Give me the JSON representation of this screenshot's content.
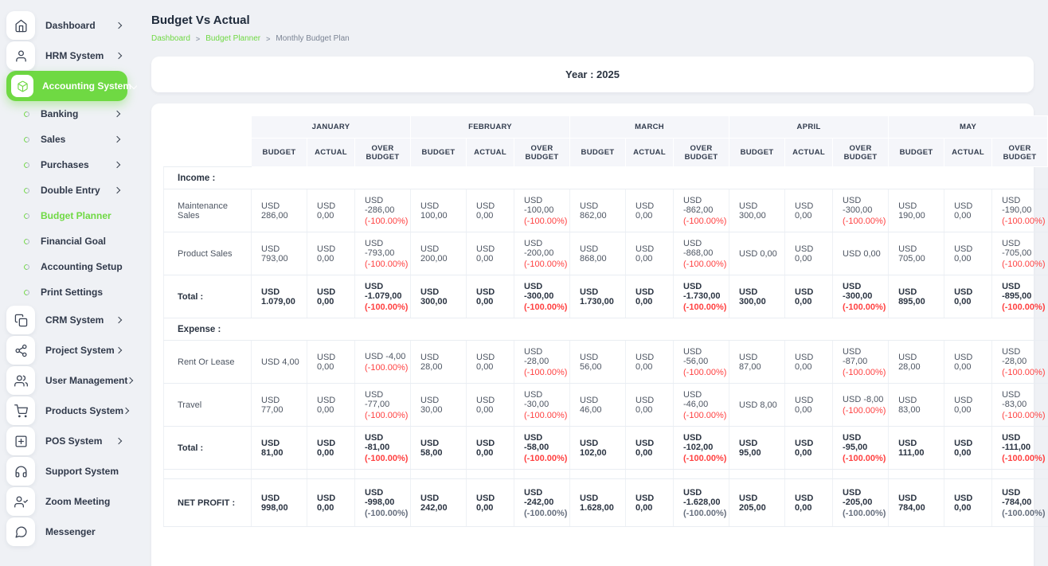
{
  "accent": {
    "green": "#6fd943",
    "red": "#ff4141",
    "dark": "#2b3442"
  },
  "sidebar": {
    "items": [
      {
        "label": "Dashboard",
        "icon": "home-icon",
        "type": "main",
        "chevron": "right"
      },
      {
        "label": "HRM System",
        "icon": "user-icon",
        "type": "main",
        "chevron": "right"
      },
      {
        "label": "Accounting System",
        "icon": "package-icon",
        "type": "main",
        "chevron": "down",
        "active": true
      },
      {
        "label": "Banking",
        "icon": "bullet-icon",
        "type": "sub",
        "chevron": "right"
      },
      {
        "label": "Sales",
        "icon": "bullet-icon",
        "type": "sub",
        "chevron": "right"
      },
      {
        "label": "Purchases",
        "icon": "bullet-icon",
        "type": "sub",
        "chevron": "right"
      },
      {
        "label": "Double Entry",
        "icon": "bullet-icon",
        "type": "sub",
        "chevron": "right"
      },
      {
        "label": "Budget Planner",
        "icon": "bullet-icon",
        "type": "sub",
        "chevron": null,
        "active": true
      },
      {
        "label": "Financial Goal",
        "icon": "bullet-icon",
        "type": "sub",
        "chevron": null
      },
      {
        "label": "Accounting Setup",
        "icon": "bullet-icon",
        "type": "sub",
        "chevron": null
      },
      {
        "label": "Print Settings",
        "icon": "bullet-icon",
        "type": "sub",
        "chevron": null
      },
      {
        "label": "CRM System",
        "icon": "copy-icon",
        "type": "main",
        "chevron": "right"
      },
      {
        "label": "Project System",
        "icon": "share-icon",
        "type": "main",
        "chevron": "right"
      },
      {
        "label": "User Management",
        "icon": "users-icon",
        "type": "main",
        "chevron": "right"
      },
      {
        "label": "Products System",
        "icon": "cart-icon",
        "type": "main",
        "chevron": "right"
      },
      {
        "label": "POS System",
        "icon": "plus-square-icon",
        "type": "main",
        "chevron": "right"
      },
      {
        "label": "Support System",
        "icon": "headphones-icon",
        "type": "main",
        "chevron": null
      },
      {
        "label": "Zoom Meeting",
        "icon": "user-check-icon",
        "type": "main",
        "chevron": null
      },
      {
        "label": "Messenger",
        "icon": "message-icon",
        "type": "main",
        "chevron": null
      }
    ]
  },
  "header": {
    "title": "Budget Vs Actual",
    "breadcrumb": [
      {
        "label": "Dashboard",
        "link": true
      },
      {
        "label": "Budget Planner",
        "link": true
      },
      {
        "label": "Monthly Budget Plan",
        "link": false
      }
    ]
  },
  "filter": {
    "year_label": "Year : 2025"
  },
  "table": {
    "months": [
      "JANUARY",
      "FEBRUARY",
      "MARCH",
      "APRIL",
      "MAY"
    ],
    "sub_headers": [
      "BUDGET",
      "ACTUAL",
      "OVER BUDGET"
    ],
    "sections": [
      {
        "heading": "Income :",
        "rows": [
          {
            "label": "Maintenance Sales",
            "bold": false,
            "pct_muted": false,
            "months": [
              {
                "budget": "USD 286,00",
                "actual": "USD 0,00",
                "over": "USD -286,00",
                "pct": "(-100.00%)"
              },
              {
                "budget": "USD 100,00",
                "actual": "USD 0,00",
                "over": "USD -100,00",
                "pct": "(-100.00%)"
              },
              {
                "budget": "USD 862,00",
                "actual": "USD 0,00",
                "over": "USD -862,00",
                "pct": "(-100.00%)"
              },
              {
                "budget": "USD 300,00",
                "actual": "USD 0,00",
                "over": "USD -300,00",
                "pct": "(-100.00%)"
              },
              {
                "budget": "USD 190,00",
                "actual": "USD 0,00",
                "over": "USD -190,00",
                "pct": "(-100.00%)"
              }
            ]
          },
          {
            "label": "Product Sales",
            "bold": false,
            "pct_muted": false,
            "months": [
              {
                "budget": "USD 793,00",
                "actual": "USD 0,00",
                "over": "USD -793,00",
                "pct": "(-100.00%)"
              },
              {
                "budget": "USD 200,00",
                "actual": "USD 0,00",
                "over": "USD -200,00",
                "pct": "(-100.00%)"
              },
              {
                "budget": "USD 868,00",
                "actual": "USD 0,00",
                "over": "USD -868,00",
                "pct": "(-100.00%)"
              },
              {
                "budget": "USD 0,00",
                "actual": "USD 0,00",
                "over": "USD 0,00",
                "pct": null
              },
              {
                "budget": "USD 705,00",
                "actual": "USD 0,00",
                "over": "USD -705,00",
                "pct": "(-100.00%)"
              }
            ]
          },
          {
            "label": "Total :",
            "bold": true,
            "pct_muted": false,
            "months": [
              {
                "budget": "USD 1.079,00",
                "actual": "USD 0,00",
                "over": "USD -1.079,00",
                "pct": "(-100.00%)"
              },
              {
                "budget": "USD 300,00",
                "actual": "USD 0,00",
                "over": "USD -300,00",
                "pct": "(-100.00%)"
              },
              {
                "budget": "USD 1.730,00",
                "actual": "USD 0,00",
                "over": "USD -1.730,00",
                "pct": "(-100.00%)"
              },
              {
                "budget": "USD 300,00",
                "actual": "USD 0,00",
                "over": "USD -300,00",
                "pct": "(-100.00%)"
              },
              {
                "budget": "USD 895,00",
                "actual": "USD 0,00",
                "over": "USD -895,00",
                "pct": "(-100.00%)"
              }
            ]
          }
        ]
      },
      {
        "heading": "Expense :",
        "rows": [
          {
            "label": "Rent Or Lease",
            "bold": false,
            "pct_muted": false,
            "months": [
              {
                "budget": "USD 4,00",
                "actual": "USD 0,00",
                "over": "USD -4,00",
                "pct": "(-100.00%)"
              },
              {
                "budget": "USD 28,00",
                "actual": "USD 0,00",
                "over": "USD -28,00",
                "pct": "(-100.00%)"
              },
              {
                "budget": "USD 56,00",
                "actual": "USD 0,00",
                "over": "USD -56,00",
                "pct": "(-100.00%)"
              },
              {
                "budget": "USD 87,00",
                "actual": "USD 0,00",
                "over": "USD -87,00",
                "pct": "(-100.00%)"
              },
              {
                "budget": "USD 28,00",
                "actual": "USD 0,00",
                "over": "USD -28,00",
                "pct": "(-100.00%)"
              }
            ]
          },
          {
            "label": "Travel",
            "bold": false,
            "pct_muted": false,
            "months": [
              {
                "budget": "USD 77,00",
                "actual": "USD 0,00",
                "over": "USD -77,00",
                "pct": "(-100.00%)"
              },
              {
                "budget": "USD 30,00",
                "actual": "USD 0,00",
                "over": "USD -30,00",
                "pct": "(-100.00%)"
              },
              {
                "budget": "USD 46,00",
                "actual": "USD 0,00",
                "over": "USD -46,00",
                "pct": "(-100.00%)"
              },
              {
                "budget": "USD 8,00",
                "actual": "USD 0,00",
                "over": "USD -8,00",
                "pct": "(-100.00%)"
              },
              {
                "budget": "USD 83,00",
                "actual": "USD 0,00",
                "over": "USD -83,00",
                "pct": "(-100.00%)"
              }
            ]
          },
          {
            "label": "Total :",
            "bold": true,
            "pct_muted": false,
            "months": [
              {
                "budget": "USD 81,00",
                "actual": "USD 0,00",
                "over": "USD -81,00",
                "pct": "(-100.00%)"
              },
              {
                "budget": "USD 58,00",
                "actual": "USD 0,00",
                "over": "USD -58,00",
                "pct": "(-100.00%)"
              },
              {
                "budget": "USD 102,00",
                "actual": "USD 0,00",
                "over": "USD -102,00",
                "pct": "(-100.00%)"
              },
              {
                "budget": "USD 95,00",
                "actual": "USD 0,00",
                "over": "USD -95,00",
                "pct": "(-100.00%)"
              },
              {
                "budget": "USD 111,00",
                "actual": "USD 0,00",
                "over": "USD -111,00",
                "pct": "(-100.00%)"
              }
            ]
          }
        ]
      },
      {
        "heading": null,
        "spacer": true,
        "rows": [
          {
            "label": "NET PROFIT :",
            "bold": true,
            "pct_muted": true,
            "months": [
              {
                "budget": "USD 998,00",
                "actual": "USD 0,00",
                "over": "USD -998,00",
                "pct": "(-100.00%)"
              },
              {
                "budget": "USD 242,00",
                "actual": "USD 0,00",
                "over": "USD -242,00",
                "pct": "(-100.00%)"
              },
              {
                "budget": "USD 1.628,00",
                "actual": "USD 0,00",
                "over": "USD -1.628,00",
                "pct": "(-100.00%)"
              },
              {
                "budget": "USD 205,00",
                "actual": "USD 0,00",
                "over": "USD -205,00",
                "pct": "(-100.00%)"
              },
              {
                "budget": "USD 784,00",
                "actual": "USD 0,00",
                "over": "USD -784,00",
                "pct": "(-100.00%)"
              }
            ]
          }
        ]
      }
    ]
  }
}
